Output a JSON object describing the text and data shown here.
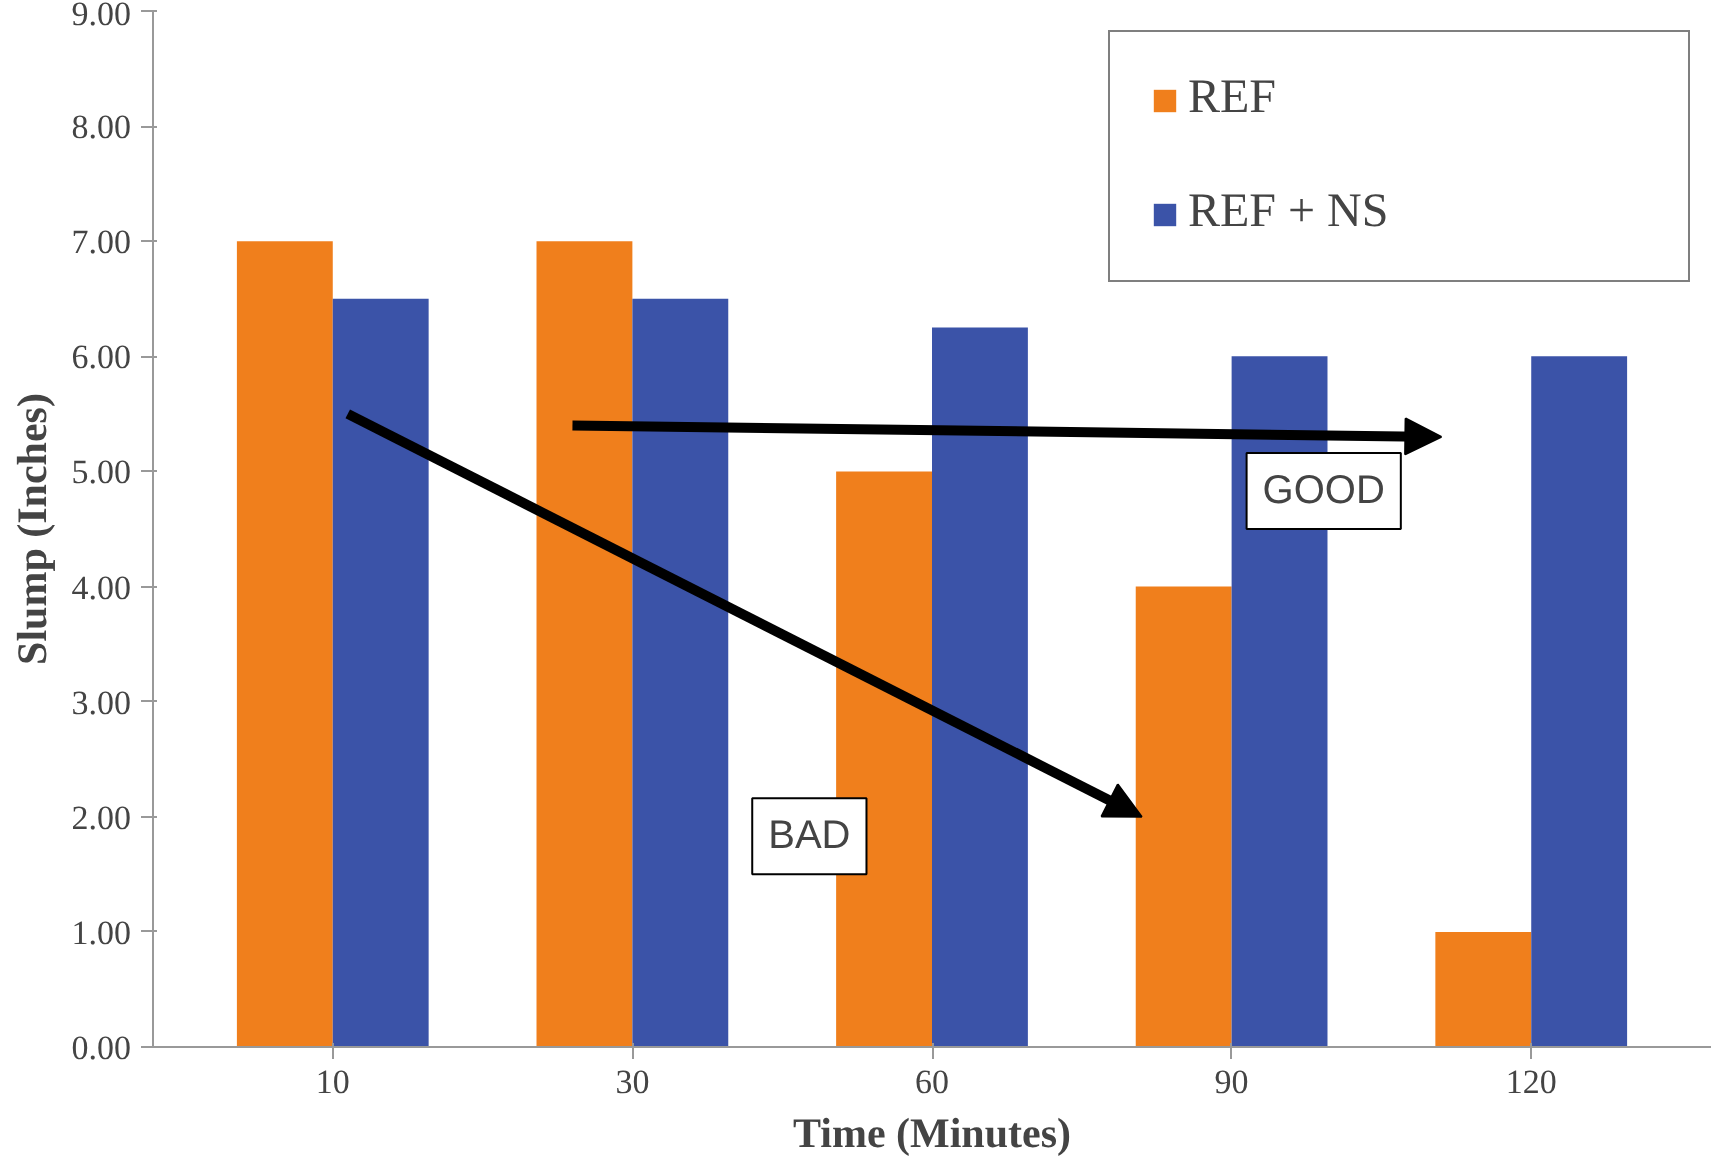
{
  "chart_data": {
    "type": "bar",
    "xlabel": "Time (Minutes)",
    "ylabel": "Slump (Inches)",
    "categories": [
      "10",
      "30",
      "60",
      "90",
      "120"
    ],
    "series": [
      {
        "name": "REF",
        "color": "#f07f1c",
        "values": [
          7,
          7,
          5,
          4,
          1
        ]
      },
      {
        "name": "REF + NS",
        "color": "#3b53a8",
        "values": [
          6.5,
          6.5,
          6.25,
          6,
          6
        ]
      }
    ],
    "ylim": [
      0,
      9
    ],
    "yticks": [
      {
        "value": 0,
        "label": "0.00"
      },
      {
        "value": 1,
        "label": "1.00"
      },
      {
        "value": 2,
        "label": "2.00"
      },
      {
        "value": 3,
        "label": "3.00"
      },
      {
        "value": 4,
        "label": "4.00"
      },
      {
        "value": 5,
        "label": "5.00"
      },
      {
        "value": 6,
        "label": "6.00"
      },
      {
        "value": 7,
        "label": "7.00"
      },
      {
        "value": 8,
        "label": "8.00"
      },
      {
        "value": 9,
        "label": "9.00"
      }
    ],
    "grid": false,
    "legend": "top right",
    "annotations": [
      "GOOD",
      "BAD"
    ]
  }
}
